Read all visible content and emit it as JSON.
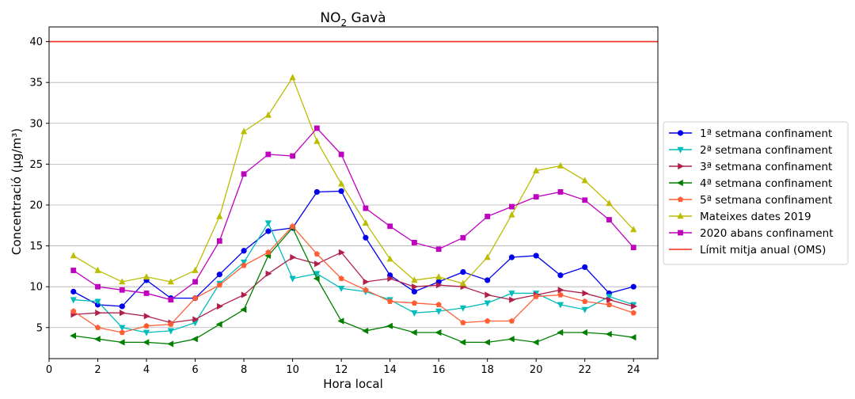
{
  "chart_data": {
    "type": "line",
    "title_main": "NO",
    "title_sub": "2",
    "title_rest": " Gavà",
    "xlabel": "Hora local",
    "ylabel": "Concentració (µg/m³)",
    "xlim": [
      0,
      25
    ],
    "ylim": [
      1.2,
      41.8
    ],
    "xticks": [
      0,
      2,
      4,
      6,
      8,
      10,
      12,
      14,
      16,
      18,
      20,
      22,
      24
    ],
    "yticks": [
      5,
      10,
      15,
      20,
      25,
      30,
      35,
      40
    ],
    "grid": "horizontal",
    "legend_position": "right",
    "x": [
      1,
      2,
      3,
      4,
      5,
      6,
      7,
      8,
      9,
      10,
      11,
      12,
      13,
      14,
      15,
      16,
      17,
      18,
      19,
      20,
      21,
      22,
      23,
      24
    ],
    "series": [
      {
        "name": "1ª setmana confinament",
        "color": "#0000ee",
        "marker": "circle",
        "values": [
          9.4,
          7.8,
          7.6,
          10.8,
          8.6,
          8.6,
          11.5,
          14.4,
          16.8,
          17.2,
          21.6,
          21.7,
          16.0,
          11.4,
          9.4,
          10.6,
          11.8,
          10.8,
          13.6,
          13.8,
          11.4,
          12.4,
          9.2,
          10.0
        ]
      },
      {
        "name": "2ª setmana confinament",
        "color": "#00bcbc",
        "marker": "triangle-down",
        "values": [
          8.4,
          8.2,
          5.0,
          4.4,
          4.6,
          5.6,
          10.4,
          13.0,
          17.8,
          11.0,
          11.6,
          9.8,
          9.4,
          8.4,
          6.8,
          7.0,
          7.4,
          8.0,
          9.2,
          9.2,
          7.8,
          7.2,
          8.8,
          7.8
        ]
      },
      {
        "name": "3ª setmana confinament",
        "color": "#b0204a",
        "marker": "triangle-right",
        "values": [
          6.6,
          6.8,
          6.8,
          6.4,
          5.6,
          6.0,
          7.6,
          9.0,
          11.6,
          13.6,
          12.8,
          14.2,
          10.6,
          11.0,
          10.0,
          10.2,
          10.0,
          9.0,
          8.4,
          9.0,
          9.6,
          9.2,
          8.4,
          7.6
        ]
      },
      {
        "name": "4ª setmana confinament",
        "color": "#007f00",
        "marker": "triangle-left",
        "values": [
          4.0,
          3.6,
          3.2,
          3.2,
          3.0,
          3.6,
          5.4,
          7.2,
          13.8,
          17.2,
          11.0,
          5.8,
          4.6,
          5.2,
          4.4,
          4.4,
          3.2,
          3.2,
          3.6,
          3.2,
          4.4,
          4.4,
          4.2,
          3.8
        ]
      },
      {
        "name": "5ª setmana confinament",
        "color": "#ff5e35",
        "marker": "pentagon",
        "values": [
          7.0,
          5.0,
          4.4,
          5.2,
          5.4,
          8.6,
          10.2,
          12.6,
          14.2,
          17.4,
          14.0,
          11.0,
          9.6,
          8.2,
          8.0,
          7.8,
          5.6,
          5.8,
          5.8,
          8.8,
          9.0,
          8.2,
          7.8,
          6.8
        ]
      },
      {
        "name": "Mateixes dates 2019",
        "color": "#bcbc00",
        "marker": "triangle-up",
        "values": [
          13.8,
          12.0,
          10.6,
          11.2,
          10.6,
          12.0,
          18.6,
          29.0,
          31.0,
          35.6,
          27.8,
          22.6,
          17.8,
          13.4,
          10.8,
          11.2,
          10.4,
          13.6,
          18.8,
          24.2,
          24.8,
          23.0,
          20.2,
          17.0
        ]
      },
      {
        "name": "2020 abans confinament",
        "color": "#bf00bf",
        "marker": "square",
        "values": [
          12.0,
          10.0,
          9.6,
          9.2,
          8.4,
          10.6,
          15.6,
          23.8,
          26.2,
          26.0,
          29.4,
          26.2,
          19.6,
          17.4,
          15.4,
          14.6,
          16.0,
          18.6,
          19.8,
          21.0,
          21.6,
          20.6,
          18.2,
          14.8
        ]
      }
    ],
    "reference_line": {
      "name": "Límit mitja anual (OMS)",
      "color": "#ee2d1c",
      "value": 40
    }
  }
}
